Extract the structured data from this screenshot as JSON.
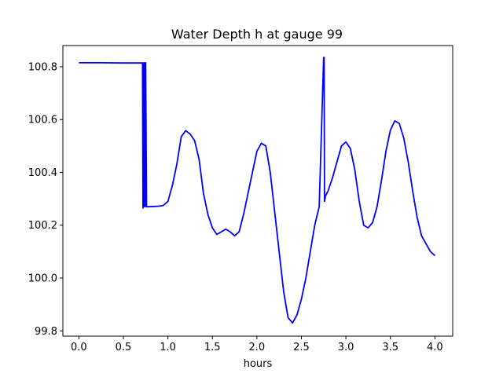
{
  "chart_data": {
    "type": "line",
    "title": "Water Depth h at gauge 99",
    "xlabel": "hours",
    "ylabel": "",
    "xlim": [
      -0.18,
      4.2
    ],
    "ylim": [
      99.78,
      100.88
    ],
    "xticks": [
      0.0,
      0.5,
      1.0,
      1.5,
      2.0,
      2.5,
      3.0,
      3.5,
      4.0
    ],
    "xtick_labels": [
      "0.0",
      "0.5",
      "1.0",
      "1.5",
      "2.0",
      "2.5",
      "3.0",
      "3.5",
      "4.0"
    ],
    "yticks": [
      99.8,
      100.0,
      100.2,
      100.4,
      100.6,
      100.8
    ],
    "ytick_labels": [
      "99.8",
      "100.0",
      "100.2",
      "100.4",
      "100.6",
      "100.8"
    ],
    "grid": false,
    "series": [
      {
        "color": "#0000ff",
        "x": [
          0.0,
          0.2,
          0.5,
          0.7,
          0.715,
          0.72,
          0.725,
          0.73,
          0.74,
          0.745,
          0.75,
          0.76,
          0.8,
          0.9,
          0.95,
          1.0,
          1.05,
          1.1,
          1.15,
          1.2,
          1.25,
          1.3,
          1.35,
          1.4,
          1.45,
          1.5,
          1.55,
          1.6,
          1.65,
          1.7,
          1.75,
          1.8,
          1.85,
          1.9,
          1.95,
          2.0,
          2.05,
          2.1,
          2.15,
          2.2,
          2.25,
          2.3,
          2.35,
          2.4,
          2.45,
          2.5,
          2.55,
          2.6,
          2.65,
          2.7,
          2.75,
          2.755,
          2.76,
          2.765,
          2.77,
          2.8,
          2.85,
          2.9,
          2.95,
          3.0,
          3.05,
          3.1,
          3.15,
          3.2,
          3.25,
          3.3,
          3.35,
          3.4,
          3.45,
          3.5,
          3.55,
          3.6,
          3.65,
          3.7,
          3.75,
          3.8,
          3.85,
          3.9,
          3.95,
          4.0
        ],
        "y": [
          100.815,
          100.815,
          100.814,
          100.814,
          100.814,
          100.265,
          100.815,
          100.27,
          100.815,
          100.27,
          100.815,
          100.27,
          100.27,
          100.272,
          100.275,
          100.29,
          100.35,
          100.43,
          100.535,
          100.558,
          100.545,
          100.52,
          100.45,
          100.32,
          100.24,
          100.19,
          100.165,
          100.175,
          100.185,
          100.175,
          100.16,
          100.175,
          100.24,
          100.32,
          100.4,
          100.48,
          100.51,
          100.5,
          100.4,
          100.25,
          100.1,
          99.95,
          99.85,
          99.83,
          99.86,
          99.92,
          100.0,
          100.1,
          100.2,
          100.27,
          100.835,
          100.835,
          100.29,
          100.3,
          100.31,
          100.33,
          100.38,
          100.44,
          100.5,
          100.515,
          100.49,
          100.41,
          100.29,
          100.2,
          100.19,
          100.21,
          100.27,
          100.37,
          100.48,
          100.56,
          100.595,
          100.585,
          100.53,
          100.44,
          100.33,
          100.23,
          100.16,
          100.13,
          100.1,
          100.085
        ]
      }
    ]
  }
}
